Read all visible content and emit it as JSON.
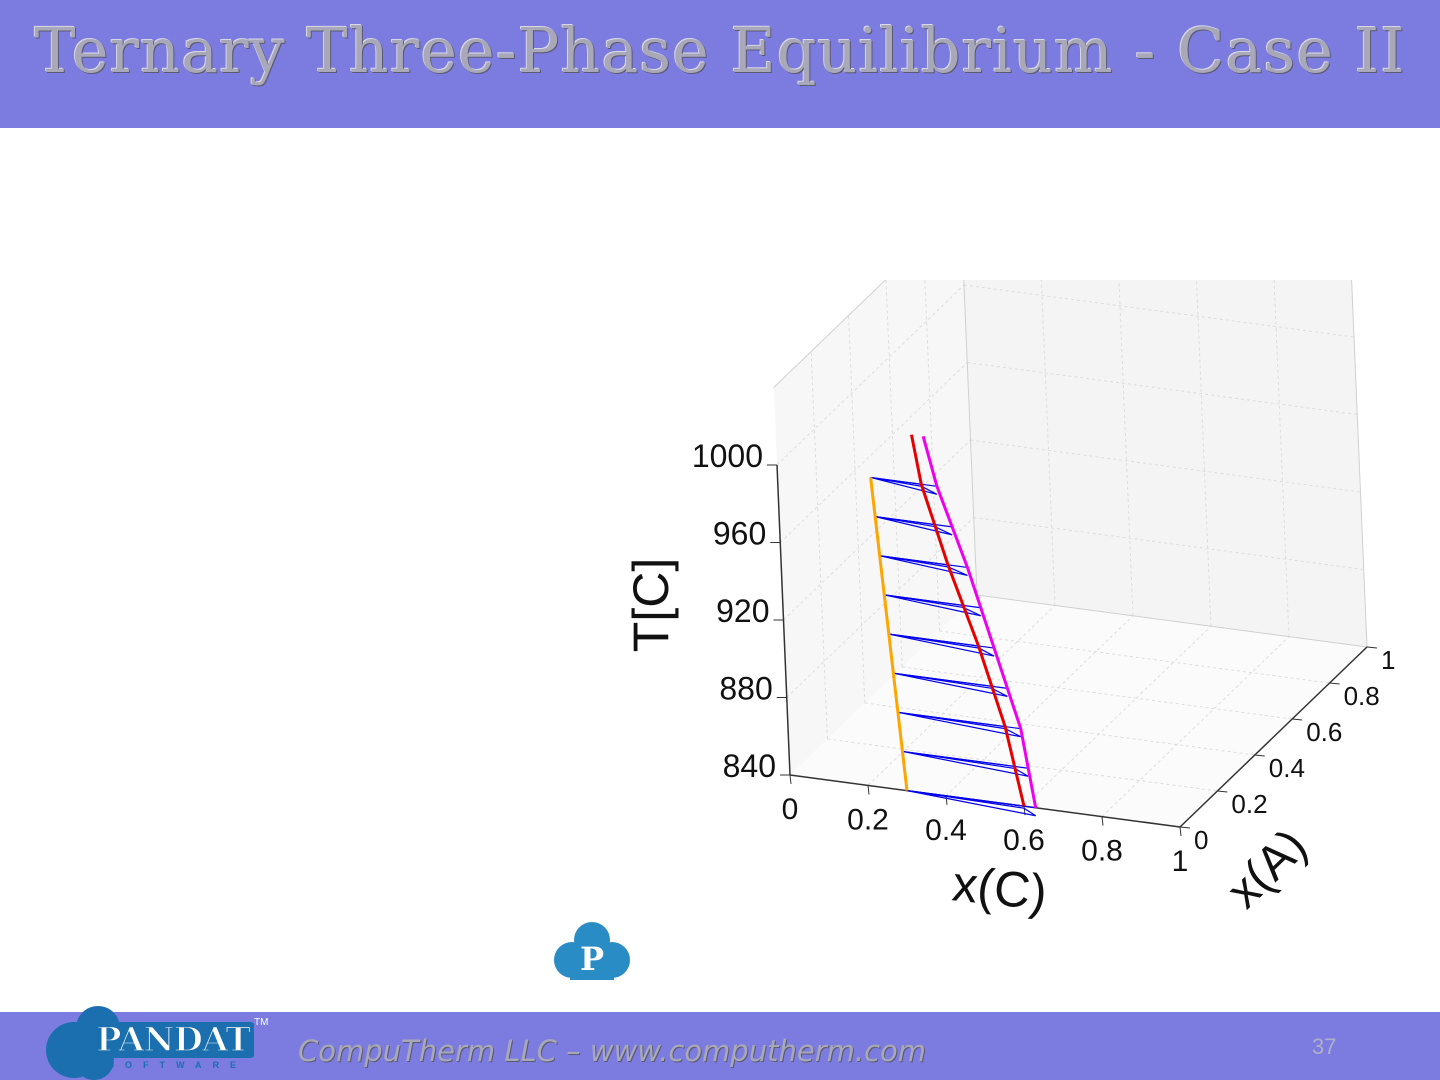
{
  "slide": {
    "title": "Ternary Three-Phase Equilibrium - Case II",
    "footer_text": "CompuTherm LLC – www.computherm.com",
    "page_number": "37",
    "logo_text": "PANDAT",
    "logo_sub": "SOFTWARE",
    "logo_tm": "TM",
    "badge_letter": "P"
  },
  "colors": {
    "header_bg": "#7b7be0",
    "phase1": "#ffa500",
    "phase2": "#e60000",
    "phase3": "#ee00ee",
    "tie_lines": "#0000ee"
  },
  "chart_data": {
    "type": "line",
    "projection": "3d",
    "xlabel": "x(C)",
    "ylabel": "x(A)",
    "zlabel": "T[C]",
    "xlim": [
      0,
      1
    ],
    "ylim": [
      0,
      1
    ],
    "zlim": [
      840,
      1000
    ],
    "x_ticks": [
      "0",
      "0.2",
      "0.4",
      "0.6",
      "0.8",
      "1"
    ],
    "y_ticks": [
      "0",
      "0.2",
      "0.4",
      "0.6",
      "0.8",
      "1"
    ],
    "z_ticks": [
      "840",
      "880",
      "920",
      "960",
      "1000"
    ],
    "grid": true,
    "series": [
      {
        "color": "#ffa500",
        "points": [
          {
            "x": 0.3,
            "y": 0.0,
            "z": 840
          },
          {
            "x": 0.24,
            "y": 0.0,
            "z": 1000
          }
        ]
      },
      {
        "color": "#e60000",
        "points": [
          {
            "x": 0.6,
            "y": 0.0,
            "z": 840
          },
          {
            "x": 0.56,
            "y": 0.0,
            "z": 880
          },
          {
            "x": 0.5,
            "y": 0.0,
            "z": 920
          },
          {
            "x": 0.43,
            "y": 0.0,
            "z": 960
          },
          {
            "x": 0.37,
            "y": 0.0,
            "z": 1000
          },
          {
            "x": 0.35,
            "y": 0.0,
            "z": 1025
          }
        ]
      },
      {
        "color": "#ee00ee",
        "points": [
          {
            "x": 0.63,
            "y": 0.0,
            "z": 840
          },
          {
            "x": 0.6,
            "y": 0.0,
            "z": 880
          },
          {
            "x": 0.54,
            "y": 0.0,
            "z": 920
          },
          {
            "x": 0.48,
            "y": 0.0,
            "z": 960
          },
          {
            "x": 0.41,
            "y": 0.0,
            "z": 1000
          },
          {
            "x": 0.38,
            "y": 0.0,
            "z": 1025
          }
        ]
      }
    ],
    "tie_line_temperatures": [
      840,
      860,
      880,
      900,
      920,
      940,
      960,
      980,
      1000
    ]
  }
}
